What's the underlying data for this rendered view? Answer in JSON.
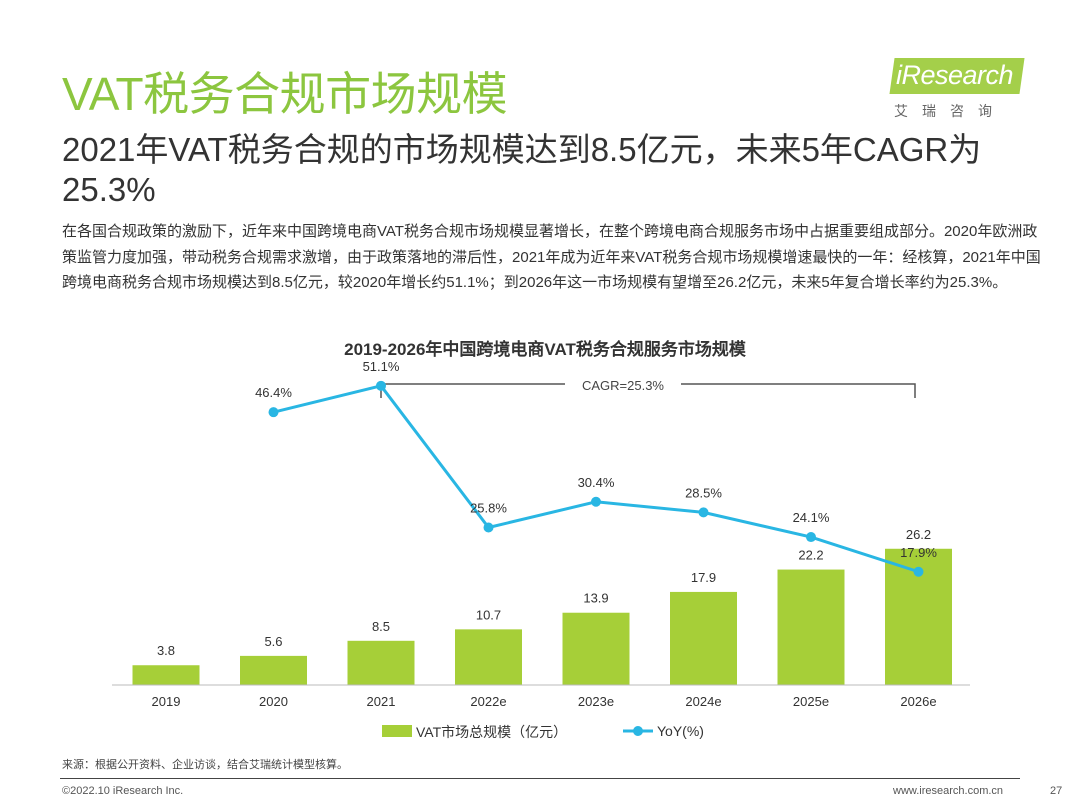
{
  "header": {
    "title": "VAT税务合规市场规模",
    "logo_text": "iResearch",
    "logo_sub": "艾瑞咨询",
    "subtitle": "2021年VAT税务合规的市场规模达到8.5亿元，未来5年CAGR为25.3%",
    "description": "在各国合规政策的激励下，近年来中国跨境电商VAT税务合规市场规模显著增长，在整个跨境电商合规服务市场中占据重要组成部分。2020年欧洲政策监管力度加强，带动税务合规需求激增，由于政策落地的滞后性，2021年成为近年来VAT税务合规市场规模增速最快的一年：经核算，2021年中国跨境电商税务合规市场规模达到8.5亿元，较2020年增长约51.1%；到2026年这一市场规模有望增至26.2亿元，未来5年复合增长率约为25.3%。"
  },
  "chart_data": {
    "type": "bar",
    "title": "2019-2026年中国跨境电商VAT税务合规服务市场规模",
    "categories": [
      "2019",
      "2020",
      "2021",
      "2022e",
      "2023e",
      "2024e",
      "2025e",
      "2026e"
    ],
    "series": [
      {
        "name": "VAT市场总规模（亿元）",
        "type": "bar",
        "values": [
          3.8,
          5.6,
          8.5,
          10.7,
          13.9,
          17.9,
          22.2,
          26.2
        ],
        "color": "#a6cf38"
      },
      {
        "name": "YoY(%)",
        "type": "line",
        "values": [
          null,
          46.4,
          51.1,
          25.8,
          30.4,
          28.5,
          24.1,
          17.9
        ],
        "labels": [
          "",
          "46.4%",
          "51.1%",
          "25.8%",
          "30.4%",
          "28.5%",
          "24.1%",
          "17.9%"
        ],
        "color": "#29b6e3"
      }
    ],
    "bar_labels": [
      "3.8",
      "5.6",
      "8.5",
      "10.7",
      "13.9",
      "17.9",
      "22.2",
      "26.2"
    ],
    "bar_ylim": [
      0,
      30
    ],
    "line_ylim": [
      0,
      60
    ],
    "annotation": "CAGR=25.3%"
  },
  "footer": {
    "source": "来源：根据公开资料、企业访谈，结合艾瑞统计模型核算。",
    "copyright": "©2022.10 iResearch Inc.",
    "website": "www.iresearch.com.cn",
    "page": "27"
  }
}
